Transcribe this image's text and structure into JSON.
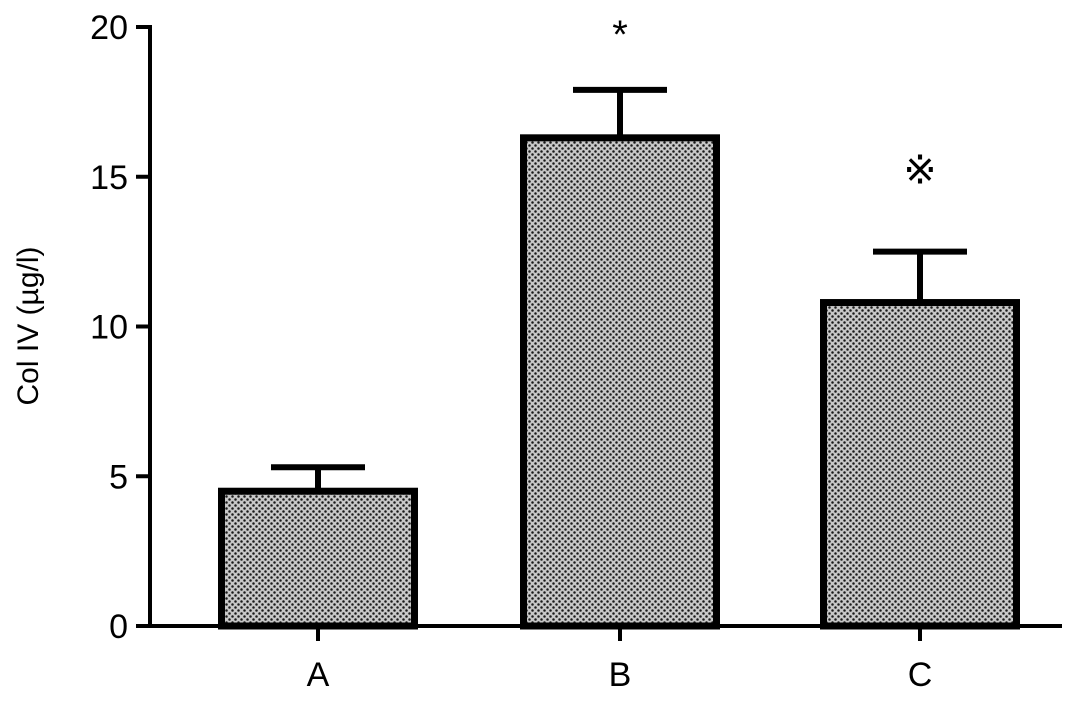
{
  "chart_data": {
    "type": "bar",
    "title": "",
    "xlabel": "",
    "ylabel": "Col IV (µg/l)",
    "categories": [
      "A",
      "B",
      "C"
    ],
    "values": [
      4.5,
      16.3,
      10.8
    ],
    "errors": [
      0.8,
      1.6,
      1.7
    ],
    "annotations": [
      "",
      "*",
      "※"
    ],
    "ylim": [
      0,
      20
    ],
    "yticks": [
      0,
      5,
      10,
      15,
      20
    ],
    "grid": false,
    "legend": "none",
    "bar_fill": "#9a9a9a",
    "bar_pattern_dot": "#1a1a1a",
    "bar_outline": "#000000"
  }
}
